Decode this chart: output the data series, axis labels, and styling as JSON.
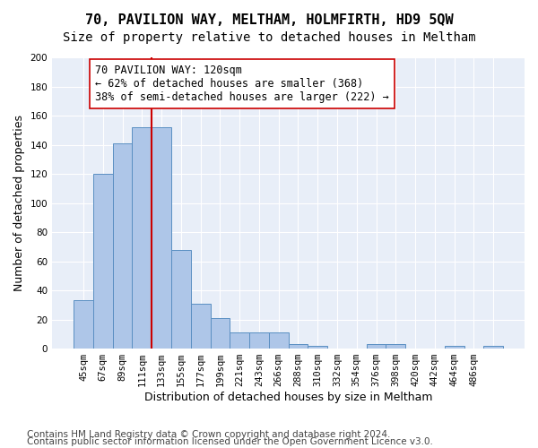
{
  "title": "70, PAVILION WAY, MELTHAM, HOLMFIRTH, HD9 5QW",
  "subtitle": "Size of property relative to detached houses in Meltham",
  "xlabel": "Distribution of detached houses by size in Meltham",
  "ylabel": "Number of detached properties",
  "categories": [
    "45sqm",
    "67sqm",
    "89sqm",
    "111sqm",
    "133sqm",
    "155sqm",
    "177sqm",
    "199sqm",
    "221sqm",
    "243sqm",
    "266sqm",
    "288sqm",
    "310sqm",
    "332sqm",
    "354sqm",
    "376sqm",
    "398sqm",
    "420sqm",
    "442sqm",
    "464sqm",
    "486sqm",
    ""
  ],
  "values": [
    33,
    120,
    141,
    152,
    152,
    68,
    31,
    21,
    11,
    11,
    11,
    3,
    2,
    0,
    0,
    3,
    3,
    0,
    0,
    2,
    0,
    2
  ],
  "bar_color": "#aec6e8",
  "bar_edge_color": "#5a8fc2",
  "vline_x": 3.5,
  "vline_color": "#cc0000",
  "annotation_text": "70 PAVILION WAY: 120sqm\n← 62% of detached houses are smaller (368)\n38% of semi-detached houses are larger (222) →",
  "annotation_box_color": "#ffffff",
  "annotation_box_edge": "#cc0000",
  "ylim": [
    0,
    200
  ],
  "yticks": [
    0,
    20,
    40,
    60,
    80,
    100,
    120,
    140,
    160,
    180,
    200
  ],
  "footer_line1": "Contains HM Land Registry data © Crown copyright and database right 2024.",
  "footer_line2": "Contains public sector information licensed under the Open Government Licence v3.0.",
  "plot_bg_color": "#e8eef8",
  "fig_bg_color": "#ffffff",
  "title_fontsize": 11,
  "subtitle_fontsize": 10,
  "label_fontsize": 9,
  "tick_fontsize": 7.5,
  "footer_fontsize": 7.5
}
